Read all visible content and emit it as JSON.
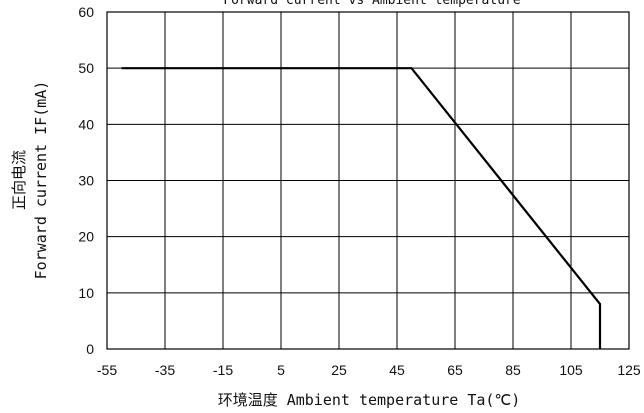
{
  "chart_data": {
    "type": "line",
    "title": "Forward current vs Ambient temperature",
    "xlabel": "环境温度 Ambient temperature Ta(℃)",
    "ylabel_line1": "正向电流",
    "ylabel_line2": "Forward current IF(mA)",
    "xlim": [
      -55,
      125
    ],
    "ylim": [
      0,
      60
    ],
    "xticks": [
      -55,
      -35,
      -15,
      5,
      25,
      45,
      65,
      85,
      105,
      125
    ],
    "yticks": [
      0,
      10,
      20,
      30,
      40,
      50,
      60
    ],
    "grid": true,
    "series": [
      {
        "x": [
          -50,
          50,
          115,
          115
        ],
        "y": [
          50,
          50,
          8,
          0
        ]
      }
    ]
  }
}
